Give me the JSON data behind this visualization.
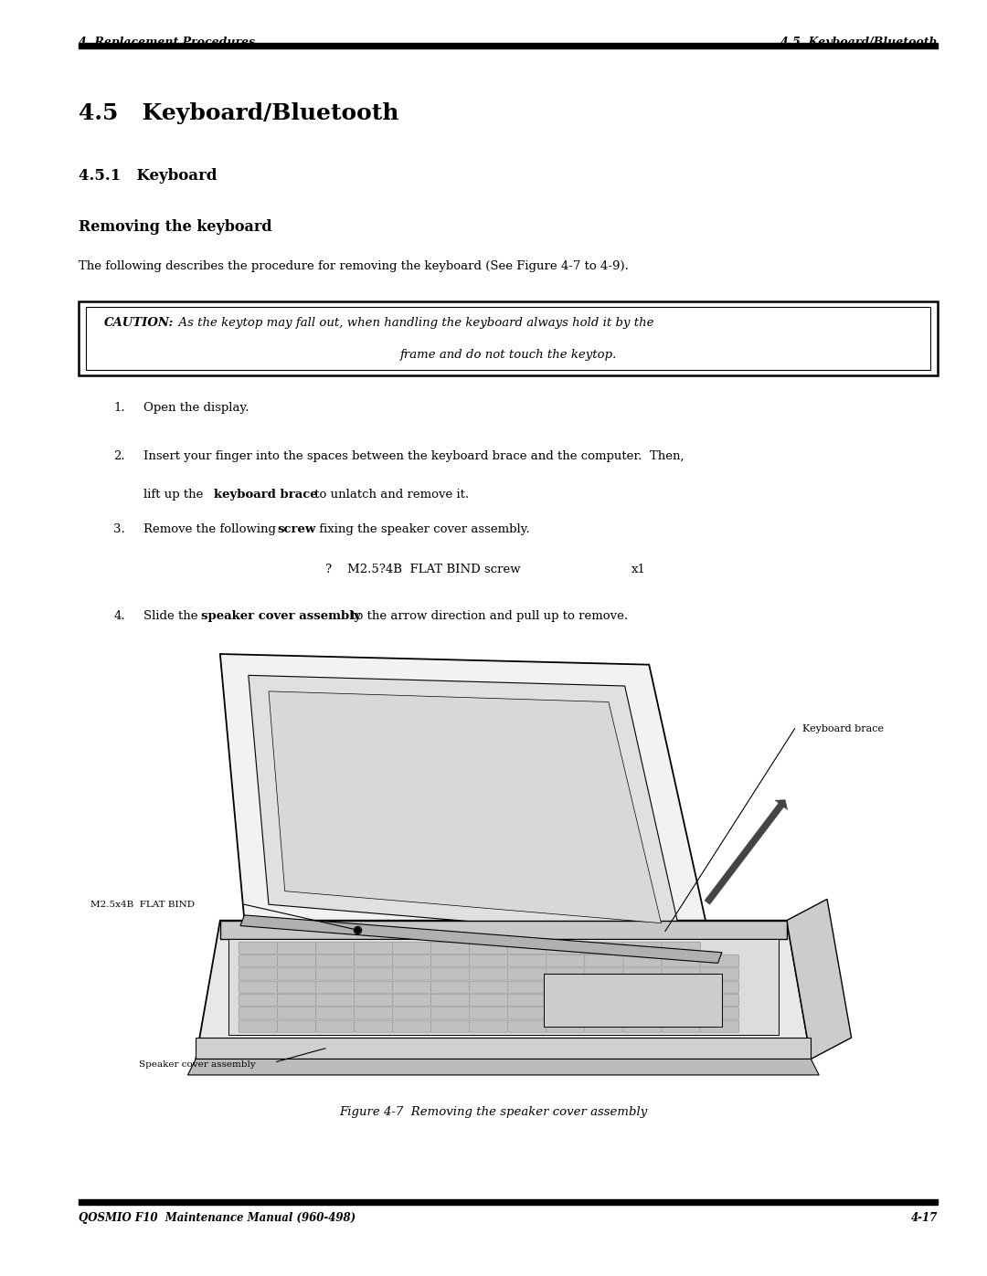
{
  "page_width": 10.8,
  "page_height": 13.97,
  "bg_color": "#ffffff",
  "header_left": "4  Replacement Procedures",
  "header_right": "4.5  Keyboard/Bluetooth",
  "footer_left": "QOSMIO F10  Maintenance Manual (960-498)",
  "footer_right": "4-17",
  "section_title": "4.5   Keyboard/Bluetooth",
  "subsection_title": "4.5.1   Keyboard",
  "subsubsection_title": "Removing the keyboard",
  "intro_text": "The following describes the procedure for removing the keyboard (See Figure 4-7 to 4-9).",
  "caution_label": "CAUTION:",
  "caution_line1": "  As the keytop may fall out, when handling the keyboard always hold it by the",
  "caution_line2": "frame and do not touch the keytop.",
  "figure_caption": "Figure 4-7  Removing the speaker cover assembly",
  "label_keyboard_brace": "Keyboard brace",
  "label_m25x4b": "M2.5x4B  FLAT BIND",
  "label_speaker": "Speaker cover assembly"
}
